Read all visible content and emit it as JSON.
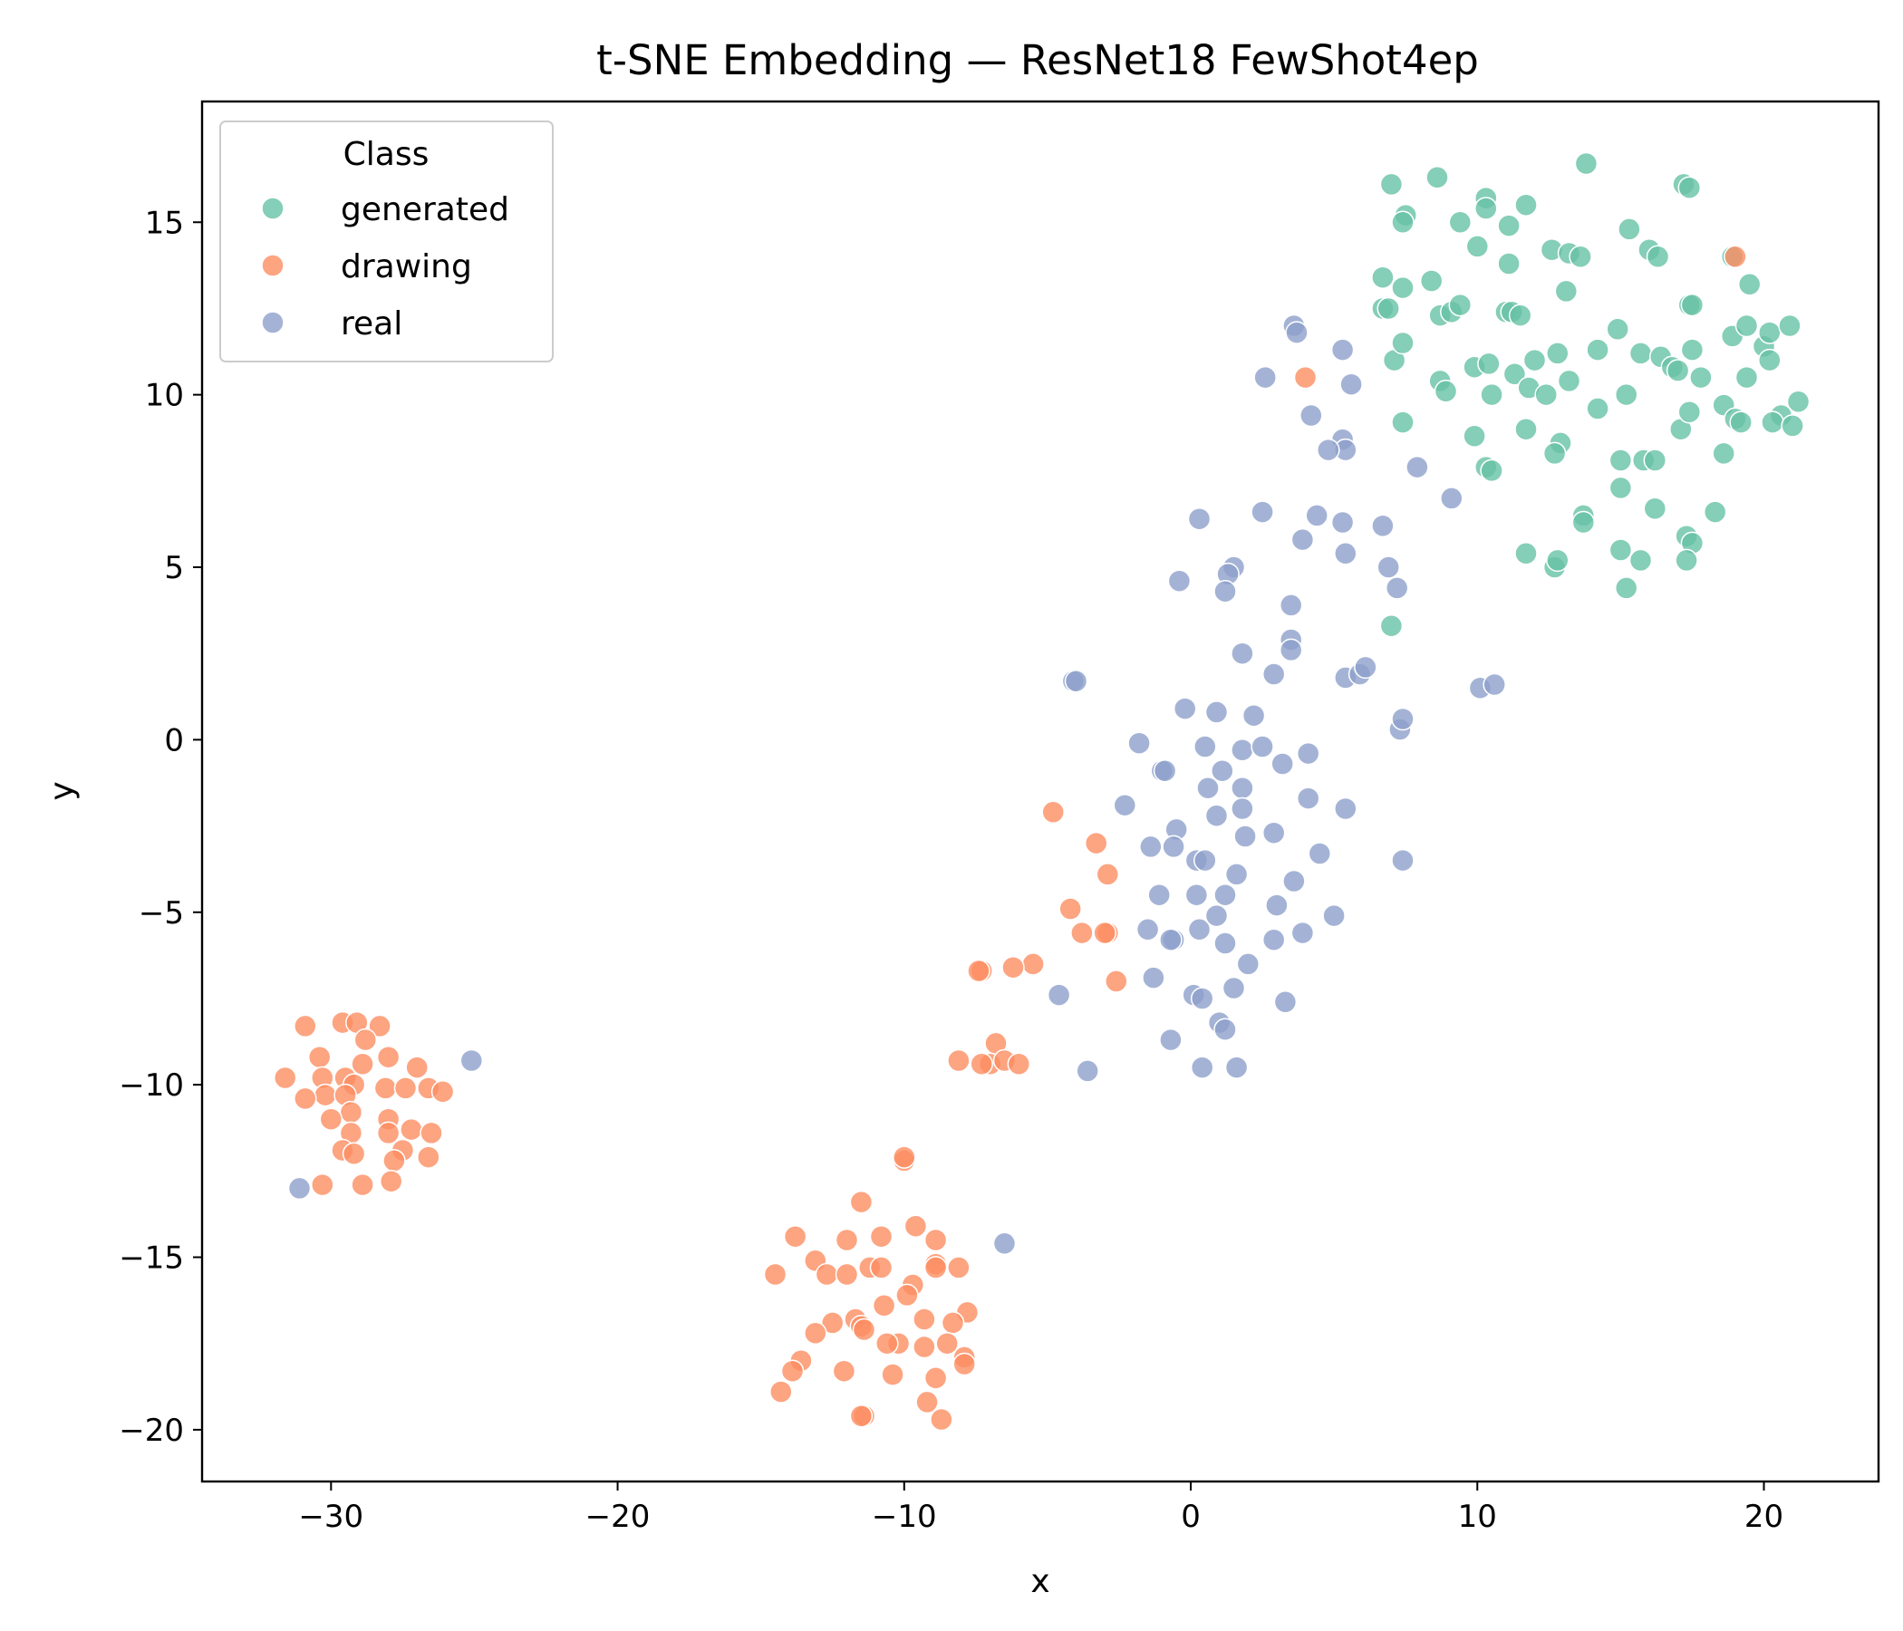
{
  "chart_data": {
    "type": "scatter",
    "title": "t-SNE Embedding — ResNet18 FewShot4ep",
    "xlabel": "x",
    "ylabel": "y",
    "xlim": [
      -34.5,
      24
    ],
    "ylim": [
      -21.5,
      18.5
    ],
    "xticks": [
      -30,
      -20,
      -10,
      0,
      10,
      20
    ],
    "yticks": [
      -20,
      -15,
      -10,
      -5,
      0,
      5,
      10,
      15
    ],
    "xtick_labels": [
      "−30",
      "−20",
      "−10",
      "0",
      "10",
      "20"
    ],
    "ytick_labels": [
      "−20",
      "−15",
      "−10",
      "−5",
      "0",
      "5",
      "10",
      "15"
    ],
    "grid": false,
    "legend": {
      "title": "Class",
      "placement": "top-left"
    },
    "series": [
      {
        "name": "generated",
        "color": "#66c2a5",
        "points": [
          [
            7.0,
            16.1
          ],
          [
            7.5,
            15.2
          ],
          [
            7.4,
            15.0
          ],
          [
            8.6,
            16.3
          ],
          [
            10.3,
            15.7
          ],
          [
            10.3,
            15.4
          ],
          [
            11.1,
            14.9
          ],
          [
            11.7,
            15.5
          ],
          [
            9.4,
            15.0
          ],
          [
            13.8,
            16.7
          ],
          [
            17.2,
            16.1
          ],
          [
            17.4,
            16.0
          ],
          [
            6.7,
            13.4
          ],
          [
            7.4,
            13.1
          ],
          [
            8.4,
            13.3
          ],
          [
            10.0,
            14.3
          ],
          [
            11.1,
            13.8
          ],
          [
            12.6,
            14.2
          ],
          [
            13.2,
            14.1
          ],
          [
            13.6,
            14.0
          ],
          [
            15.3,
            14.8
          ],
          [
            16.0,
            14.2
          ],
          [
            16.3,
            14.0
          ],
          [
            18.9,
            14.0
          ],
          [
            6.7,
            12.5
          ],
          [
            6.9,
            12.5
          ],
          [
            8.7,
            12.3
          ],
          [
            9.1,
            12.4
          ],
          [
            9.4,
            12.6
          ],
          [
            11.0,
            12.4
          ],
          [
            11.2,
            12.4
          ],
          [
            11.5,
            12.3
          ],
          [
            13.1,
            13.0
          ],
          [
            14.9,
            11.9
          ],
          [
            17.4,
            12.6
          ],
          [
            17.5,
            12.6
          ],
          [
            19.5,
            13.2
          ],
          [
            7.1,
            11.0
          ],
          [
            7.4,
            11.5
          ],
          [
            9.9,
            10.8
          ],
          [
            10.4,
            10.9
          ],
          [
            11.3,
            10.6
          ],
          [
            11.8,
            10.2
          ],
          [
            12.0,
            11.0
          ],
          [
            12.8,
            11.2
          ],
          [
            14.2,
            11.3
          ],
          [
            15.7,
            11.2
          ],
          [
            16.4,
            11.1
          ],
          [
            16.8,
            10.8
          ],
          [
            17.0,
            10.7
          ],
          [
            17.5,
            11.3
          ],
          [
            18.9,
            11.7
          ],
          [
            19.4,
            12.0
          ],
          [
            20.0,
            11.4
          ],
          [
            20.2,
            11.8
          ],
          [
            20.2,
            11.0
          ],
          [
            20.9,
            12.0
          ],
          [
            8.7,
            10.4
          ],
          [
            8.9,
            10.1
          ],
          [
            10.5,
            10.0
          ],
          [
            12.4,
            10.0
          ],
          [
            13.2,
            10.4
          ],
          [
            15.2,
            10.0
          ],
          [
            17.8,
            10.5
          ],
          [
            19.4,
            10.5
          ],
          [
            21.2,
            9.8
          ],
          [
            20.6,
            9.4
          ],
          [
            18.6,
            9.7
          ],
          [
            19.0,
            9.3
          ],
          [
            19.2,
            9.2
          ],
          [
            20.3,
            9.2
          ],
          [
            21.0,
            9.1
          ],
          [
            7.4,
            9.2
          ],
          [
            9.9,
            8.8
          ],
          [
            11.7,
            9.0
          ],
          [
            12.9,
            8.6
          ],
          [
            12.7,
            8.3
          ],
          [
            14.2,
            9.6
          ],
          [
            15.0,
            8.1
          ],
          [
            15.8,
            8.1
          ],
          [
            16.2,
            8.1
          ],
          [
            17.1,
            9.0
          ],
          [
            17.4,
            9.5
          ],
          [
            18.6,
            8.3
          ],
          [
            10.3,
            7.9
          ],
          [
            10.5,
            7.8
          ],
          [
            13.7,
            6.5
          ],
          [
            13.7,
            6.3
          ],
          [
            15.0,
            7.3
          ],
          [
            16.2,
            6.7
          ],
          [
            18.3,
            6.6
          ],
          [
            11.7,
            5.4
          ],
          [
            12.7,
            5.0
          ],
          [
            12.8,
            5.2
          ],
          [
            15.0,
            5.5
          ],
          [
            15.7,
            5.2
          ],
          [
            17.3,
            5.9
          ],
          [
            17.5,
            5.7
          ],
          [
            17.3,
            5.2
          ],
          [
            15.2,
            4.4
          ],
          [
            7.0,
            3.3
          ]
        ]
      },
      {
        "name": "drawing",
        "color": "#fc8d62",
        "points": [
          [
            4.0,
            10.5
          ],
          [
            19.0,
            14.0
          ],
          [
            -4.8,
            -2.1
          ],
          [
            -3.3,
            -3.0
          ],
          [
            -2.9,
            -3.9
          ],
          [
            -4.2,
            -4.9
          ],
          [
            -3.8,
            -5.6
          ],
          [
            -2.9,
            -5.6
          ],
          [
            -3.0,
            -5.6
          ],
          [
            -2.6,
            -7.0
          ],
          [
            -5.5,
            -6.5
          ],
          [
            -6.2,
            -6.6
          ],
          [
            -7.3,
            -6.7
          ],
          [
            -7.4,
            -6.7
          ],
          [
            -8.1,
            -9.3
          ],
          [
            -6.8,
            -8.8
          ],
          [
            -7.0,
            -9.4
          ],
          [
            -6.5,
            -9.3
          ],
          [
            -6.0,
            -9.4
          ],
          [
            -7.3,
            -9.4
          ],
          [
            -29.6,
            -8.2
          ],
          [
            -29.1,
            -8.2
          ],
          [
            -28.3,
            -8.3
          ],
          [
            -30.9,
            -8.3
          ],
          [
            -28.8,
            -8.7
          ],
          [
            -31.6,
            -9.8
          ],
          [
            -30.4,
            -9.2
          ],
          [
            -28.0,
            -9.2
          ],
          [
            -29.5,
            -9.8
          ],
          [
            -28.9,
            -9.4
          ],
          [
            -27.0,
            -9.5
          ],
          [
            -30.3,
            -9.8
          ],
          [
            -29.2,
            -10.0
          ],
          [
            -28.1,
            -10.1
          ],
          [
            -27.4,
            -10.1
          ],
          [
            -26.6,
            -10.1
          ],
          [
            -26.1,
            -10.2
          ],
          [
            -30.2,
            -10.3
          ],
          [
            -29.5,
            -10.3
          ],
          [
            -30.9,
            -10.4
          ],
          [
            -29.3,
            -10.8
          ],
          [
            -30.0,
            -11.0
          ],
          [
            -28.0,
            -11.0
          ],
          [
            -27.2,
            -11.3
          ],
          [
            -26.5,
            -11.4
          ],
          [
            -28.0,
            -11.4
          ],
          [
            -29.3,
            -11.4
          ],
          [
            -29.6,
            -11.9
          ],
          [
            -27.5,
            -11.9
          ],
          [
            -29.2,
            -12.0
          ],
          [
            -26.6,
            -12.1
          ],
          [
            -27.8,
            -12.2
          ],
          [
            -27.9,
            -12.8
          ],
          [
            -28.9,
            -12.9
          ],
          [
            -30.3,
            -12.9
          ],
          [
            -10.0,
            -12.2
          ],
          [
            -10.0,
            -12.1
          ],
          [
            -11.5,
            -13.4
          ],
          [
            -13.8,
            -14.4
          ],
          [
            -9.6,
            -14.1
          ],
          [
            -12.0,
            -14.5
          ],
          [
            -10.8,
            -14.4
          ],
          [
            -8.9,
            -14.5
          ],
          [
            -13.1,
            -15.1
          ],
          [
            -12.7,
            -15.5
          ],
          [
            -11.2,
            -15.3
          ],
          [
            -10.8,
            -15.3
          ],
          [
            -8.9,
            -15.2
          ],
          [
            -8.9,
            -15.3
          ],
          [
            -8.1,
            -15.3
          ],
          [
            -14.5,
            -15.5
          ],
          [
            -12.0,
            -15.5
          ],
          [
            -9.7,
            -15.8
          ],
          [
            -9.9,
            -16.1
          ],
          [
            -10.7,
            -16.4
          ],
          [
            -7.8,
            -16.6
          ],
          [
            -9.3,
            -16.8
          ],
          [
            -8.3,
            -16.9
          ],
          [
            -11.7,
            -16.8
          ],
          [
            -12.5,
            -16.9
          ],
          [
            -11.5,
            -17.0
          ],
          [
            -13.1,
            -17.2
          ],
          [
            -11.4,
            -17.1
          ],
          [
            -10.2,
            -17.5
          ],
          [
            -9.3,
            -17.6
          ],
          [
            -10.6,
            -17.5
          ],
          [
            -8.5,
            -17.5
          ],
          [
            -7.9,
            -17.9
          ],
          [
            -7.9,
            -18.1
          ],
          [
            -13.6,
            -18.0
          ],
          [
            -13.9,
            -18.3
          ],
          [
            -12.1,
            -18.3
          ],
          [
            -10.4,
            -18.4
          ],
          [
            -8.9,
            -18.5
          ],
          [
            -14.3,
            -18.9
          ],
          [
            -9.2,
            -19.2
          ],
          [
            -11.4,
            -19.6
          ],
          [
            -11.5,
            -19.6
          ],
          [
            -8.7,
            -19.7
          ]
        ]
      },
      {
        "name": "real",
        "color": "#8da0cb",
        "points": [
          [
            3.6,
            12.0
          ],
          [
            3.7,
            11.8
          ],
          [
            2.6,
            10.5
          ],
          [
            5.3,
            11.3
          ],
          [
            5.6,
            10.3
          ],
          [
            4.2,
            9.4
          ],
          [
            5.3,
            8.7
          ],
          [
            5.4,
            8.4
          ],
          [
            4.8,
            8.4
          ],
          [
            7.9,
            7.9
          ],
          [
            9.1,
            7.0
          ],
          [
            2.5,
            6.6
          ],
          [
            0.3,
            6.4
          ],
          [
            4.4,
            6.5
          ],
          [
            5.3,
            6.3
          ],
          [
            6.7,
            6.2
          ],
          [
            3.9,
            5.8
          ],
          [
            5.4,
            5.4
          ],
          [
            1.5,
            5.0
          ],
          [
            1.3,
            4.8
          ],
          [
            1.2,
            4.3
          ],
          [
            -0.4,
            4.6
          ],
          [
            6.9,
            5.0
          ],
          [
            7.2,
            4.4
          ],
          [
            3.5,
            3.9
          ],
          [
            3.5,
            2.9
          ],
          [
            3.5,
            2.6
          ],
          [
            1.8,
            2.5
          ],
          [
            2.9,
            1.9
          ],
          [
            5.4,
            1.8
          ],
          [
            5.9,
            1.9
          ],
          [
            6.1,
            2.1
          ],
          [
            10.1,
            1.5
          ],
          [
            10.6,
            1.6
          ],
          [
            -4.1,
            1.7
          ],
          [
            -4.0,
            1.7
          ],
          [
            -0.2,
            0.9
          ],
          [
            0.9,
            0.8
          ],
          [
            2.2,
            0.7
          ],
          [
            7.3,
            0.3
          ],
          [
            7.4,
            0.6
          ],
          [
            -1.8,
            -0.1
          ],
          [
            0.5,
            -0.2
          ],
          [
            1.8,
            -0.3
          ],
          [
            2.5,
            -0.2
          ],
          [
            3.2,
            -0.7
          ],
          [
            4.1,
            -0.4
          ],
          [
            -1.0,
            -0.9
          ],
          [
            -0.9,
            -0.9
          ],
          [
            1.1,
            -0.9
          ],
          [
            0.6,
            -1.4
          ],
          [
            1.8,
            -1.4
          ],
          [
            4.1,
            -1.7
          ],
          [
            -2.3,
            -1.9
          ],
          [
            1.8,
            -2.0
          ],
          [
            5.4,
            -2.0
          ],
          [
            0.9,
            -2.2
          ],
          [
            -0.5,
            -2.6
          ],
          [
            -1.4,
            -3.1
          ],
          [
            -0.6,
            -3.1
          ],
          [
            1.9,
            -2.8
          ],
          [
            2.9,
            -2.7
          ],
          [
            4.5,
            -3.3
          ],
          [
            0.2,
            -3.5
          ],
          [
            0.5,
            -3.5
          ],
          [
            1.6,
            -3.9
          ],
          [
            3.6,
            -4.1
          ],
          [
            7.4,
            -3.5
          ],
          [
            -1.1,
            -4.5
          ],
          [
            0.2,
            -4.5
          ],
          [
            1.2,
            -4.5
          ],
          [
            3.0,
            -4.8
          ],
          [
            0.9,
            -5.1
          ],
          [
            5.0,
            -5.1
          ],
          [
            -1.5,
            -5.5
          ],
          [
            0.3,
            -5.5
          ],
          [
            -0.6,
            -5.8
          ],
          [
            -0.7,
            -5.8
          ],
          [
            1.2,
            -5.9
          ],
          [
            2.9,
            -5.8
          ],
          [
            3.9,
            -5.6
          ],
          [
            2.0,
            -6.5
          ],
          [
            -1.3,
            -6.9
          ],
          [
            1.5,
            -7.2
          ],
          [
            0.1,
            -7.4
          ],
          [
            0.4,
            -7.5
          ],
          [
            3.3,
            -7.6
          ],
          [
            -4.6,
            -7.4
          ],
          [
            1.0,
            -8.2
          ],
          [
            1.2,
            -8.4
          ],
          [
            -0.7,
            -8.7
          ],
          [
            -3.6,
            -9.6
          ],
          [
            0.4,
            -9.5
          ],
          [
            1.6,
            -9.5
          ],
          [
            -25.1,
            -9.3
          ],
          [
            -31.1,
            -13.0
          ],
          [
            -6.5,
            -14.6
          ]
        ]
      }
    ]
  }
}
